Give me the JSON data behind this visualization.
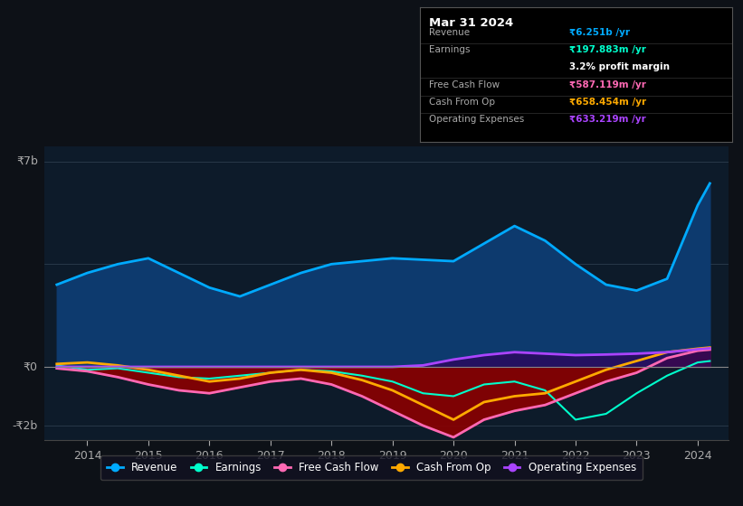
{
  "background_color": "#0d1117",
  "plot_bg_color": "#0d1b2a",
  "ylabel_top": "₹7b",
  "ylabel_mid": "₹0",
  "ylabel_bot": "-₹2b",
  "ylim": [
    -2500000000,
    7500000000
  ],
  "xlim": [
    2013.3,
    2024.5
  ],
  "legend": [
    "Revenue",
    "Earnings",
    "Free Cash Flow",
    "Cash From Op",
    "Operating Expenses"
  ],
  "legend_colors": [
    "#00aaff",
    "#00ffcc",
    "#ff69b4",
    "#ffaa00",
    "#aa44ff"
  ],
  "revenue_color": "#00aaff",
  "revenue_fill": "#0d3a6e",
  "earnings_color": "#00ffcc",
  "fcf_color": "#ff69b4",
  "fcf_fill": "#8b0000",
  "cashop_color": "#ffaa00",
  "opex_color": "#aa44ff",
  "opex_fill": "#2a0a5e",
  "x_years": [
    2013.5,
    2014.0,
    2014.5,
    2015.0,
    2015.5,
    2016.0,
    2016.5,
    2017.0,
    2017.5,
    2018.0,
    2018.5,
    2019.0,
    2019.5,
    2020.0,
    2020.5,
    2021.0,
    2021.5,
    2022.0,
    2022.5,
    2023.0,
    2023.5,
    2024.0,
    2024.2
  ],
  "revenue": [
    2800000000,
    3200000000,
    3500000000,
    3700000000,
    3200000000,
    2700000000,
    2400000000,
    2800000000,
    3200000000,
    3500000000,
    3600000000,
    3700000000,
    3650000000,
    3600000000,
    4200000000,
    4800000000,
    4300000000,
    3500000000,
    2800000000,
    2600000000,
    3000000000,
    5500000000,
    6251000000
  ],
  "earnings": [
    50000000,
    -100000000,
    -50000000,
    -200000000,
    -350000000,
    -400000000,
    -300000000,
    -200000000,
    -100000000,
    -150000000,
    -300000000,
    -500000000,
    -900000000,
    -1000000000,
    -600000000,
    -500000000,
    -800000000,
    -1800000000,
    -1600000000,
    -900000000,
    -300000000,
    150000000,
    197883000
  ],
  "fcf": [
    -50000000,
    -150000000,
    -350000000,
    -600000000,
    -800000000,
    -900000000,
    -700000000,
    -500000000,
    -400000000,
    -600000000,
    -1000000000,
    -1500000000,
    -2000000000,
    -2400000000,
    -1800000000,
    -1500000000,
    -1300000000,
    -900000000,
    -500000000,
    -200000000,
    300000000,
    550000000,
    587119000
  ],
  "cashop": [
    100000000,
    150000000,
    50000000,
    -100000000,
    -300000000,
    -500000000,
    -400000000,
    -200000000,
    -100000000,
    -200000000,
    -450000000,
    -800000000,
    -1300000000,
    -1800000000,
    -1200000000,
    -1000000000,
    -900000000,
    -500000000,
    -100000000,
    200000000,
    500000000,
    620000000,
    658454000
  ],
  "opex": [
    0,
    0,
    0,
    0,
    0,
    0,
    0,
    0,
    0,
    0,
    0,
    0,
    50000000,
    250000000,
    400000000,
    500000000,
    450000000,
    400000000,
    420000000,
    450000000,
    500000000,
    600000000,
    633219000
  ],
  "info_box_title": "Mar 31 2024",
  "info_rows": [
    {
      "label": "Revenue",
      "value": "₹6.251b /yr",
      "color": "#00aaff",
      "separator": true
    },
    {
      "label": "Earnings",
      "value": "₹197.883m /yr",
      "color": "#00ffcc",
      "separator": false
    },
    {
      "label": "",
      "value": "3.2% profit margin",
      "color": "#ffffff",
      "separator": true
    },
    {
      "label": "Free Cash Flow",
      "value": "₹587.119m /yr",
      "color": "#ff69b4",
      "separator": true
    },
    {
      "label": "Cash From Op",
      "value": "₹658.454m /yr",
      "color": "#ffaa00",
      "separator": true
    },
    {
      "label": "Operating Expenses",
      "value": "₹633.219m /yr",
      "color": "#aa44ff",
      "separator": false
    }
  ]
}
